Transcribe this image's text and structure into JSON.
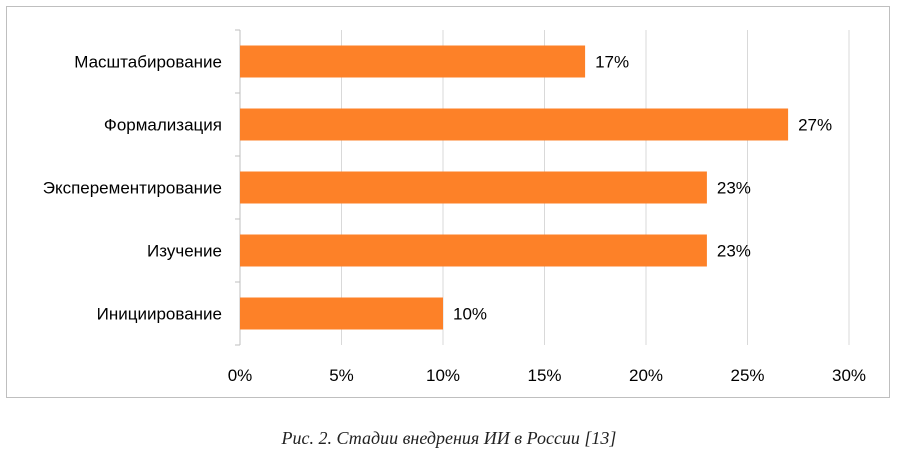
{
  "caption": "Рис. 2. Стадии внедрения ИИ в России [13]",
  "colors": {
    "bar": "#fd8128",
    "grid": "#d9d9d9",
    "axis": "#bfbfbf"
  },
  "chart_data": {
    "type": "bar",
    "orientation": "horizontal",
    "categories": [
      "Масштабирование",
      "Формализация",
      "Эксперементирование",
      "Изучение",
      "Инициирование"
    ],
    "values": [
      17,
      27,
      23,
      23,
      10
    ],
    "value_labels": [
      "17%",
      "27%",
      "23%",
      "23%",
      "10%"
    ],
    "x_ticks": [
      0,
      5,
      10,
      15,
      20,
      25,
      30
    ],
    "x_tick_labels": [
      "0%",
      "5%",
      "10%",
      "15%",
      "20%",
      "25%",
      "30%"
    ],
    "xlim": [
      0,
      30
    ],
    "grid": true,
    "legend": "none"
  }
}
